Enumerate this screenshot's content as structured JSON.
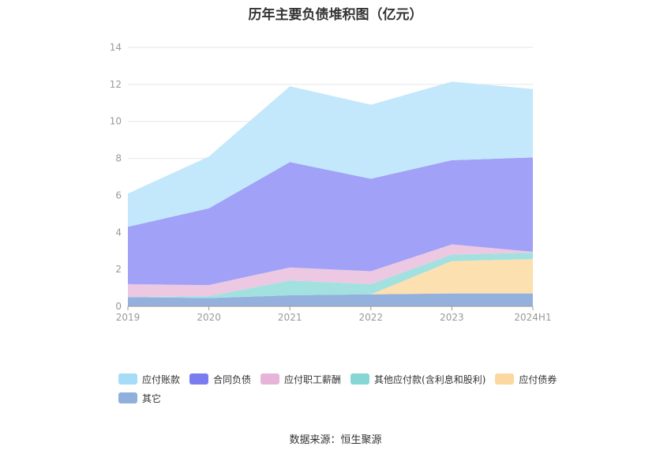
{
  "page": {
    "title": "历年主要负债堆积图（亿元）",
    "source": "数据来源：恒生聚源"
  },
  "chart_data": {
    "type": "area",
    "stacked": true,
    "categories": [
      "2019",
      "2020",
      "2021",
      "2022",
      "2023",
      "2024H1"
    ],
    "ylim": [
      0,
      14
    ],
    "yticks": [
      0,
      2,
      4,
      6,
      8,
      10,
      12,
      14
    ],
    "grid": true,
    "legend_position": "bottom-left",
    "series": [
      {
        "name": "其它",
        "color": "#94b0dc",
        "values": [
          0.5,
          0.45,
          0.6,
          0.65,
          0.7,
          0.7
        ]
      },
      {
        "name": "应付债券",
        "color": "#fde0b0",
        "values": [
          0,
          0,
          0,
          0,
          1.75,
          1.85
        ]
      },
      {
        "name": "其他应付款(含利息和股利)",
        "color": "#a2e1e0",
        "values": [
          0,
          0.1,
          0.8,
          0.55,
          0.35,
          0.35
        ]
      },
      {
        "name": "应付职工薪酬",
        "color": "#ecc8e2",
        "values": [
          0.7,
          0.6,
          0.7,
          0.7,
          0.55,
          0.05
        ]
      },
      {
        "name": "合同负债",
        "color": "#a1a1f8",
        "values": [
          3.1,
          4.15,
          5.7,
          5.0,
          4.55,
          5.1
        ]
      },
      {
        "name": "应付账款",
        "color": "#c3e8fb",
        "values": [
          1.8,
          2.8,
          4.1,
          4.0,
          4.25,
          3.7
        ]
      }
    ],
    "legend": [
      {
        "name": "应付账款",
        "color": "#a6dcf8"
      },
      {
        "name": "合同负债",
        "color": "#7b7bf0"
      },
      {
        "name": "应付职工薪酬",
        "color": "#e6b4d8"
      },
      {
        "name": "其他应付款(含利息和股利)",
        "color": "#86d6d6"
      },
      {
        "name": "应付债券",
        "color": "#fdd7a0"
      },
      {
        "name": "其它",
        "color": "#8fb0da"
      }
    ]
  }
}
